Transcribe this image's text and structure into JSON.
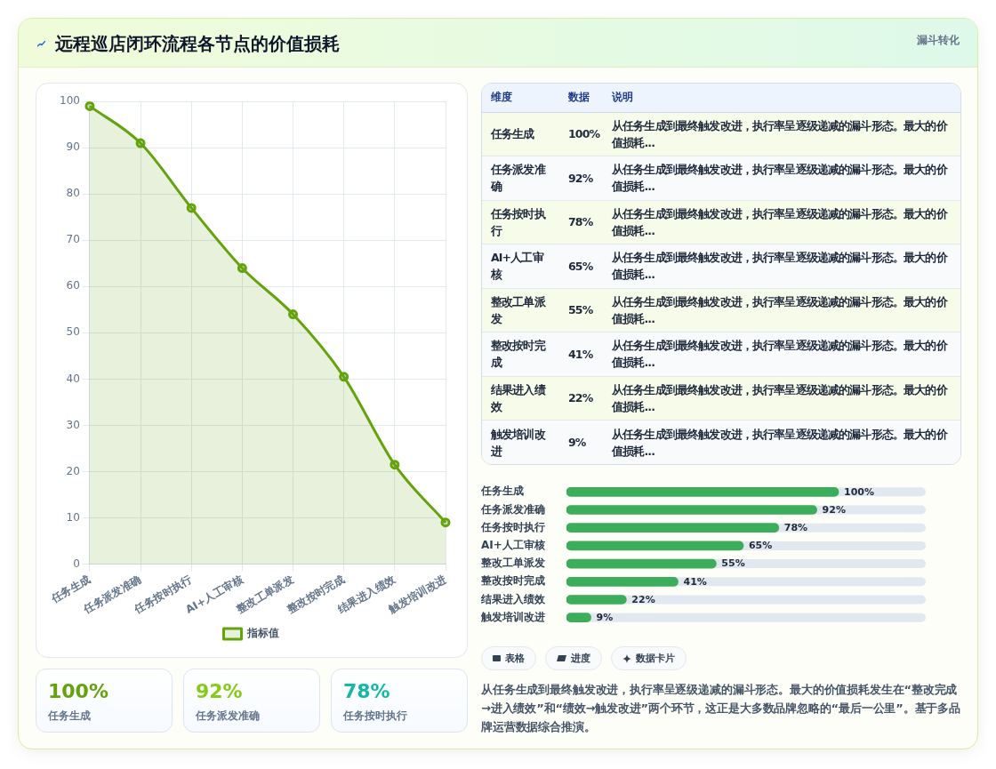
{
  "chart_data": [
    {
      "type": "other",
      "title": "远程巡店闭环流程各节点的价值损耗",
      "subtitle": "漏斗转化"
    },
    {
      "type": "area",
      "categories": [
        "任务生成",
        "任务派发准确",
        "任务按时执行",
        "AI+人工审核",
        "整改工单派发",
        "整改按时完成",
        "结果进入绩效",
        "触发培训改进"
      ],
      "series": [
        {
          "name": "指标值",
          "color": "#65a30d",
          "values": [
            99,
            91,
            77,
            64,
            54,
            40.5,
            21.5,
            9
          ]
        }
      ],
      "ylim": [
        0,
        100
      ],
      "yticks": [
        0,
        10,
        20,
        30,
        40,
        50,
        60,
        70,
        80,
        90,
        100
      ],
      "grid": true,
      "legend": "bottom",
      "marker": "circle"
    },
    {
      "type": "other",
      "categories": [
        "任务生成",
        "任务派发准确",
        "任务按时执行"
      ],
      "value_labels": [
        "100%",
        "92%",
        "78%"
      ]
    },
    {
      "type": "other",
      "categories": [
        "任务生成",
        "任务派发准确",
        "任务按时执行",
        "AI+人工审核",
        "整改工单派发",
        "整改按时完成",
        "结果进入绩效",
        "触发培训改进"
      ],
      "value_labels": [
        "100%",
        "92%",
        "78%",
        "65%",
        "55%",
        "41%",
        "22%",
        "9%"
      ],
      "annotations": [
        "维度",
        "数据",
        "说明",
        "从任务生成到最终触发改进，执行率呈逐级递减的漏斗形态。最大的价值损耗...",
        "从任务生成到最终触发改进，执行率呈逐级递减的漏斗形态。最大的价值损耗...",
        "从任务生成到最终触发改进，执行率呈逐级递减的漏斗形态。最大的价值损耗...",
        "从任务生成到最终触发改进，执行率呈逐级递减的漏斗形态。最大的价值损耗...",
        "从任务生成到最终触发改进，执行率呈逐级递减的漏斗形态。最大的价值损耗...",
        "从任务生成到最终触发改进，执行率呈逐级递减的漏斗形态。最大的价值损耗...",
        "从任务生成到最终触发改进，执行率呈逐级递减的漏斗形态。最大的价值损耗...",
        "从任务生成到最终触发改进，执行率呈逐级递减的漏斗形态。最大的价值损耗..."
      ]
    },
    {
      "type": "bar",
      "orientation": "horizontal",
      "categories": [
        "任务生成",
        "任务派发准确",
        "任务按时执行",
        "AI+人工审核",
        "整改工单派发",
        "整改按时完成",
        "结果进入绩效",
        "触发培训改进"
      ],
      "values": [
        100,
        92,
        78,
        65,
        55,
        41,
        22,
        9
      ],
      "value_labels": [
        "100%",
        "92%",
        "78%",
        "65%",
        "55%",
        "41%",
        "22%",
        "9%"
      ],
      "color": "#3cad5a",
      "xlim": [
        0,
        132
      ],
      "tick_labels": "y"
    },
    {
      "type": "other",
      "annotations": [
        "表格",
        "进度",
        "数据卡片",
        "从任务生成到最终触发改进，执行率呈逐级递减的漏斗形态。最大的价值损耗发生在“整改完成→进入绩效”和“绩效→触发改进”两个环节，这正是大多数品牌忽略的“最后一公里”。基于多品牌运营数据综合推演。"
      ]
    }
  ]
}
